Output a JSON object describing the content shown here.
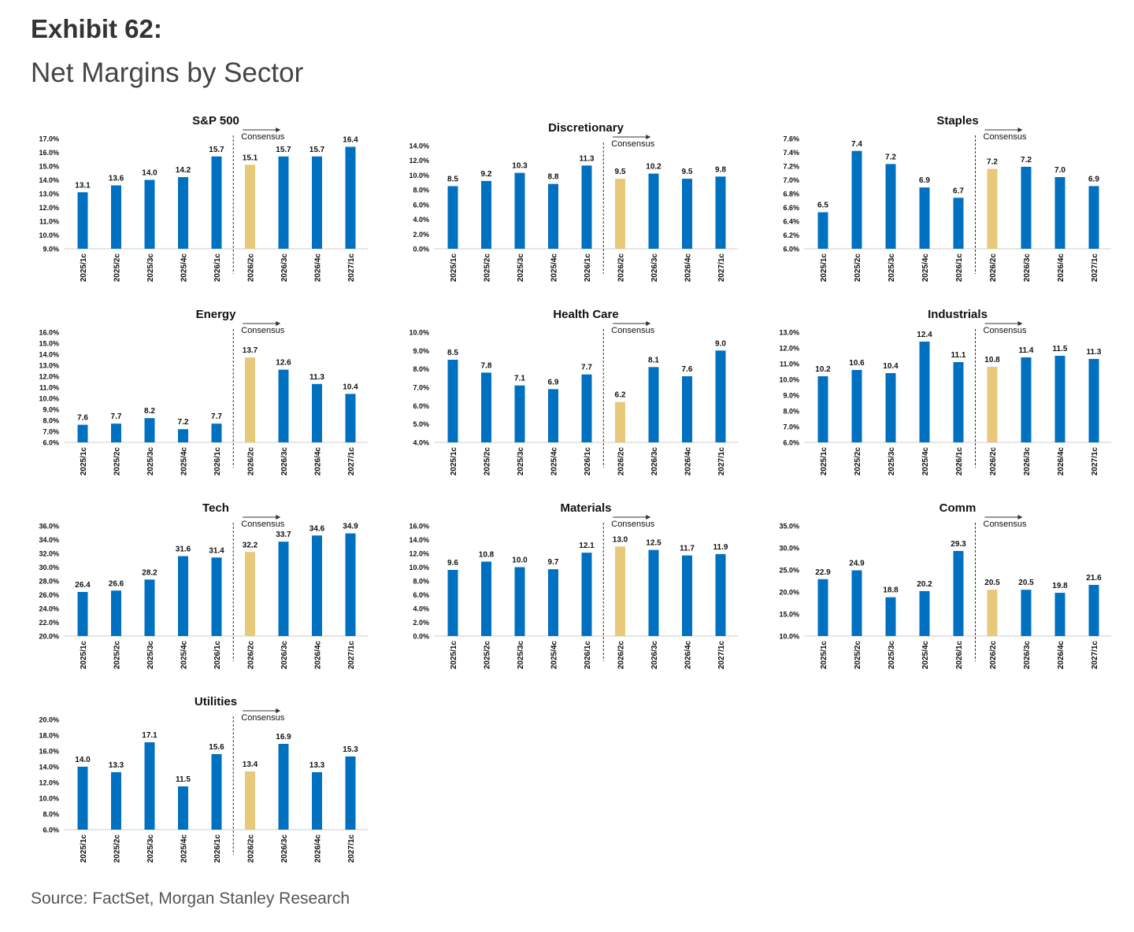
{
  "header": {
    "exhibit": "Exhibit 62:",
    "title": "Net Margins by Sector"
  },
  "footer": {
    "source": "Source: FactSet, Morgan Stanley Research"
  },
  "colors": {
    "actual": "#0070C0",
    "consensus": "#E8C97A",
    "axis": "#333333",
    "text": "#111111"
  },
  "chart_data": [
    {
      "type": "bar",
      "title": "S&P 500",
      "categories": [
        "2025/1c",
        "2025/2c",
        "2025/3c",
        "2025/4c",
        "2026/1c",
        "2026/2c",
        "2026/3c",
        "2026/4c",
        "2027/1c"
      ],
      "values": [
        13.1,
        13.6,
        14.0,
        14.2,
        15.7,
        15.1,
        15.7,
        15.7,
        16.4
      ],
      "value_labels": [
        "13.1",
        "13.6",
        "14.0",
        "14.2",
        "15.7",
        "15.1",
        "15.7",
        "15.7",
        "16.4"
      ],
      "highlight_index": 5,
      "consensus_label": "Consensus",
      "yticks": [
        "9.0%",
        "10.0%",
        "11.0%",
        "12.0%",
        "13.0%",
        "14.0%",
        "15.0%",
        "16.0%",
        "17.0%"
      ],
      "ylim": [
        9,
        17
      ]
    },
    {
      "type": "bar",
      "title": "Discretionary",
      "categories": [
        "2025/1c",
        "2025/2c",
        "2025/3c",
        "2025/4c",
        "2026/1c",
        "2026/2c",
        "2026/3c",
        "2026/4c",
        "2027/1c"
      ],
      "values": [
        8.5,
        9.2,
        10.3,
        8.8,
        11.3,
        9.5,
        10.2,
        9.5,
        9.8
      ],
      "value_labels": [
        "8.5",
        "9.2",
        "10.3",
        "8.8",
        "11.3",
        "9.5",
        "10.2",
        "9.5",
        "9.8"
      ],
      "highlight_index": 5,
      "consensus_label": "Consensus",
      "yticks": [
        "0.0%",
        "2.0%",
        "4.0%",
        "6.0%",
        "8.0%",
        "10.0%",
        "12.0%",
        "14.0%"
      ],
      "ylim": [
        0,
        14
      ]
    },
    {
      "type": "bar",
      "title": "Staples",
      "categories": [
        "2025/1c",
        "2025/2c",
        "2025/3c",
        "2025/4c",
        "2026/1c",
        "2026/2c",
        "2026/3c",
        "2026/4c",
        "2027/1c"
      ],
      "values": [
        6.53,
        7.42,
        7.23,
        6.89,
        6.74,
        7.16,
        7.19,
        7.04,
        6.91
      ],
      "value_labels": [
        "6.5",
        "7.4",
        "7.2",
        "6.9",
        "6.7",
        "7.2",
        "7.2",
        "7.0",
        "6.9"
      ],
      "highlight_index": 5,
      "consensus_label": "Consensus",
      "yticks": [
        "6.0%",
        "6.2%",
        "6.4%",
        "6.6%",
        "6.8%",
        "7.0%",
        "7.2%",
        "7.4%",
        "7.6%"
      ],
      "ylim": [
        6,
        7.6
      ]
    },
    {
      "type": "bar",
      "title": "Energy",
      "categories": [
        "2025/1c",
        "2025/2c",
        "2025/3c",
        "2025/4c",
        "2026/1c",
        "2026/2c",
        "2026/3c",
        "2026/4c",
        "2027/1c"
      ],
      "values": [
        7.6,
        7.7,
        8.2,
        7.2,
        7.7,
        13.7,
        12.6,
        11.3,
        10.4
      ],
      "value_labels": [
        "7.6",
        "7.7",
        "8.2",
        "7.2",
        "7.7",
        "13.7",
        "12.6",
        "11.3",
        "10.4"
      ],
      "highlight_index": 5,
      "consensus_label": "Consensus",
      "yticks": [
        "6.0%",
        "7.0%",
        "8.0%",
        "9.0%",
        "10.0%",
        "11.0%",
        "12.0%",
        "13.0%",
        "14.0%",
        "15.0%",
        "16.0%"
      ],
      "ylim": [
        6,
        16
      ]
    },
    {
      "type": "bar",
      "title": "Health Care",
      "categories": [
        "2025/1c",
        "2025/2c",
        "2025/3c",
        "2025/4c",
        "2026/1c",
        "2026/2c",
        "2026/3c",
        "2026/4c",
        "2027/1c"
      ],
      "values": [
        8.5,
        7.8,
        7.1,
        6.9,
        7.7,
        6.2,
        8.1,
        7.6,
        9.0
      ],
      "value_labels": [
        "8.5",
        "7.8",
        "7.1",
        "6.9",
        "7.7",
        "6.2",
        "8.1",
        "7.6",
        "9.0"
      ],
      "highlight_index": 5,
      "consensus_label": "Consensus",
      "yticks": [
        "4.0%",
        "5.0%",
        "6.0%",
        "7.0%",
        "8.0%",
        "9.0%",
        "10.0%"
      ],
      "ylim": [
        4,
        10
      ]
    },
    {
      "type": "bar",
      "title": "Industrials",
      "categories": [
        "2025/1c",
        "2025/2c",
        "2025/3c",
        "2025/4c",
        "2026/1c",
        "2026/2c",
        "2026/3c",
        "2026/4c",
        "2027/1c"
      ],
      "values": [
        10.2,
        10.6,
        10.4,
        12.4,
        11.1,
        10.8,
        11.4,
        11.5,
        11.3
      ],
      "value_labels": [
        "10.2",
        "10.6",
        "10.4",
        "12.4",
        "11.1",
        "10.8",
        "11.4",
        "11.5",
        "11.3"
      ],
      "highlight_index": 5,
      "consensus_label": "Consensus",
      "yticks": [
        "6.0%",
        "7.0%",
        "8.0%",
        "9.0%",
        "10.0%",
        "11.0%",
        "12.0%",
        "13.0%"
      ],
      "ylim": [
        6,
        13
      ]
    },
    {
      "type": "bar",
      "title": "Tech",
      "categories": [
        "2025/1c",
        "2025/2c",
        "2025/3c",
        "2025/4c",
        "2026/1c",
        "2026/2c",
        "2026/3c",
        "2026/4c",
        "2027/1c"
      ],
      "values": [
        26.4,
        26.6,
        28.2,
        31.6,
        31.4,
        32.2,
        33.7,
        34.6,
        34.9
      ],
      "value_labels": [
        "26.4",
        "26.6",
        "28.2",
        "31.6",
        "31.4",
        "32.2",
        "33.7",
        "34.6",
        "34.9"
      ],
      "highlight_index": 5,
      "consensus_label": "Consensus",
      "yticks": [
        "20.0%",
        "22.0%",
        "24.0%",
        "26.0%",
        "28.0%",
        "30.0%",
        "32.0%",
        "34.0%",
        "36.0%"
      ],
      "ylim": [
        20,
        36
      ]
    },
    {
      "type": "bar",
      "title": "Materials",
      "categories": [
        "2025/1c",
        "2025/2c",
        "2025/3c",
        "2025/4c",
        "2026/1c",
        "2026/2c",
        "2026/3c",
        "2026/4c",
        "2027/1c"
      ],
      "values": [
        9.6,
        10.8,
        10.0,
        9.7,
        12.1,
        13.0,
        12.5,
        11.7,
        11.9
      ],
      "value_labels": [
        "9.6",
        "10.8",
        "10.0",
        "9.7",
        "12.1",
        "13.0",
        "12.5",
        "11.7",
        "11.9"
      ],
      "highlight_index": 5,
      "consensus_label": "Consensus",
      "yticks": [
        "0.0%",
        "2.0%",
        "4.0%",
        "6.0%",
        "8.0%",
        "10.0%",
        "12.0%",
        "14.0%",
        "16.0%"
      ],
      "ylim": [
        0,
        16
      ]
    },
    {
      "type": "bar",
      "title": "Comm",
      "categories": [
        "2025/1c",
        "2025/2c",
        "2025/3c",
        "2025/4c",
        "2026/1c",
        "2026/2c",
        "2026/3c",
        "2026/4c",
        "2027/1c"
      ],
      "values": [
        22.9,
        24.9,
        18.8,
        20.2,
        29.3,
        20.5,
        20.5,
        19.8,
        21.6
      ],
      "value_labels": [
        "22.9",
        "24.9",
        "18.8",
        "20.2",
        "29.3",
        "20.5",
        "20.5",
        "19.8",
        "21.6"
      ],
      "highlight_index": 5,
      "consensus_label": "Consensus",
      "yticks": [
        "10.0%",
        "15.0%",
        "20.0%",
        "25.0%",
        "30.0%",
        "35.0%"
      ],
      "ylim": [
        10,
        35
      ]
    },
    {
      "type": "bar",
      "title": "Utilities",
      "categories": [
        "2025/1c",
        "2025/2c",
        "2025/3c",
        "2025/4c",
        "2026/1c",
        "2026/2c",
        "2026/3c",
        "2026/4c",
        "2027/1c"
      ],
      "values": [
        14.0,
        13.3,
        17.1,
        11.5,
        15.6,
        13.4,
        16.9,
        13.3,
        15.3
      ],
      "value_labels": [
        "14.0",
        "13.3",
        "17.1",
        "11.5",
        "15.6",
        "13.4",
        "16.9",
        "13.3",
        "15.3"
      ],
      "highlight_index": 5,
      "consensus_label": "Consensus",
      "yticks": [
        "6.0%",
        "8.0%",
        "10.0%",
        "12.0%",
        "14.0%",
        "16.0%",
        "18.0%",
        "20.0%"
      ],
      "ylim": [
        6,
        20
      ]
    }
  ]
}
